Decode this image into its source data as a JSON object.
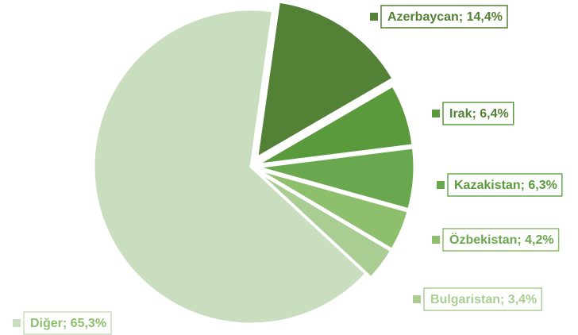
{
  "chart_data": {
    "type": "pie",
    "values": [
      14.4,
      6.4,
      6.3,
      4.2,
      3.4,
      65.3
    ],
    "value_labels": [
      "Azerbaycan; 14,4%",
      "Irak; 6,4%",
      "Kazakistan; 6,3%",
      "Özbekistan; 4,2%",
      "Bulgaristan; 3,4%",
      "Diğer; 65,3%"
    ],
    "colors": [
      "#538135",
      "#5b9a3c",
      "#6aa84f",
      "#8dbf6c",
      "#aacd94",
      "#c9ddbf"
    ]
  }
}
